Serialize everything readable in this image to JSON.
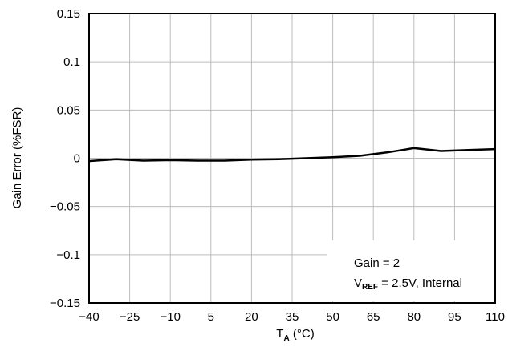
{
  "chart_data": {
    "type": "line",
    "xlabel_main": "T",
    "xlabel_sub": "A",
    "xlabel_unit": " (°C)",
    "ylabel": "Gain Error (%FSR)",
    "xlim": [
      -40,
      110
    ],
    "ylim": [
      -0.15,
      0.15
    ],
    "x_ticks": [
      -40,
      -25,
      -10,
      5,
      20,
      35,
      50,
      65,
      80,
      95,
      110
    ],
    "x_tick_labels": [
      "−40",
      "−25",
      "−10",
      "5",
      "20",
      "35",
      "50",
      "65",
      "80",
      "95",
      "110"
    ],
    "y_ticks": [
      -0.15,
      -0.1,
      -0.05,
      0,
      0.05,
      0.1,
      0.15
    ],
    "y_tick_labels": [
      "−0.15",
      "−0.1",
      "−0.05",
      "0",
      "0.05",
      "0.1",
      "0.15"
    ],
    "grid": true,
    "annotation": {
      "line1": "Gain = 2",
      "line2_main": "V",
      "line2_sub": "REF",
      "line2_rest": " = 2.5V, Internal"
    },
    "series": [
      {
        "color": "#000000",
        "x": [
          -40,
          -30,
          -20,
          -10,
          0,
          10,
          20,
          30,
          40,
          50,
          60,
          70,
          80,
          90,
          100,
          110
        ],
        "y": [
          -0.003,
          -0.001,
          -0.0025,
          -0.002,
          -0.0025,
          -0.0025,
          -0.0015,
          -0.001,
          0.0,
          0.001,
          0.0025,
          0.006,
          0.0105,
          0.0075,
          0.0085,
          0.0095
        ]
      }
    ]
  }
}
